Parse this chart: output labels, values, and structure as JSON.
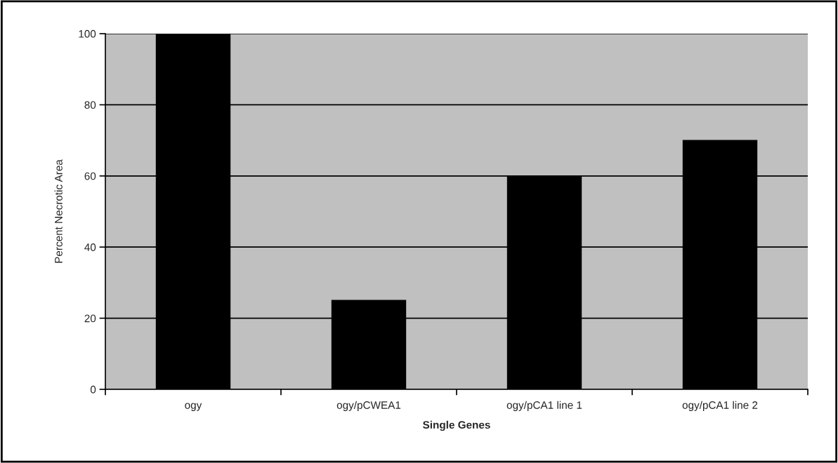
{
  "chart_data": {
    "type": "bar",
    "xlabel": "Single Genes",
    "ylabel": "Percent Necrotic Area",
    "categories": [
      "ogy",
      "ogy/pCWEA1",
      "ogy/pCA1 line 1",
      "ogy/pCA1 line 2"
    ],
    "values": [
      100,
      25,
      60,
      70
    ],
    "color": "#000000",
    "ylim": [
      0,
      100
    ],
    "yticks": [
      0,
      20,
      40,
      60,
      80,
      100
    ],
    "grid": "y"
  }
}
